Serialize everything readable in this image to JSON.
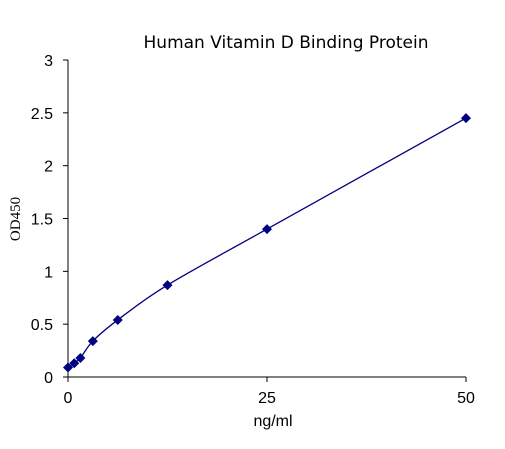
{
  "chart_data": {
    "type": "scatter",
    "title": "Human Vitamin D Binding Protein",
    "xlabel": "ng/ml",
    "ylabel": "OD450",
    "xlim": [
      0,
      50
    ],
    "ylim": [
      0,
      3
    ],
    "x_ticks": [
      0,
      25,
      50
    ],
    "y_ticks": [
      0,
      0.5,
      1,
      1.5,
      2,
      2.5,
      3
    ],
    "x_tick_labels": [
      "0",
      "25",
      "50"
    ],
    "y_tick_labels": [
      "0",
      "0.5",
      "1",
      "1.5",
      "2",
      "2.5",
      "3"
    ],
    "grid": false,
    "legend": "none",
    "marker": "diamond",
    "color": "#000080",
    "series": [
      {
        "x": [
          0,
          0.78,
          1.56,
          3.12,
          6.25,
          12.5,
          25,
          50
        ],
        "y": [
          0.09,
          0.13,
          0.18,
          0.34,
          0.54,
          0.87,
          1.4,
          2.45
        ]
      }
    ],
    "fit_curve": true
  }
}
